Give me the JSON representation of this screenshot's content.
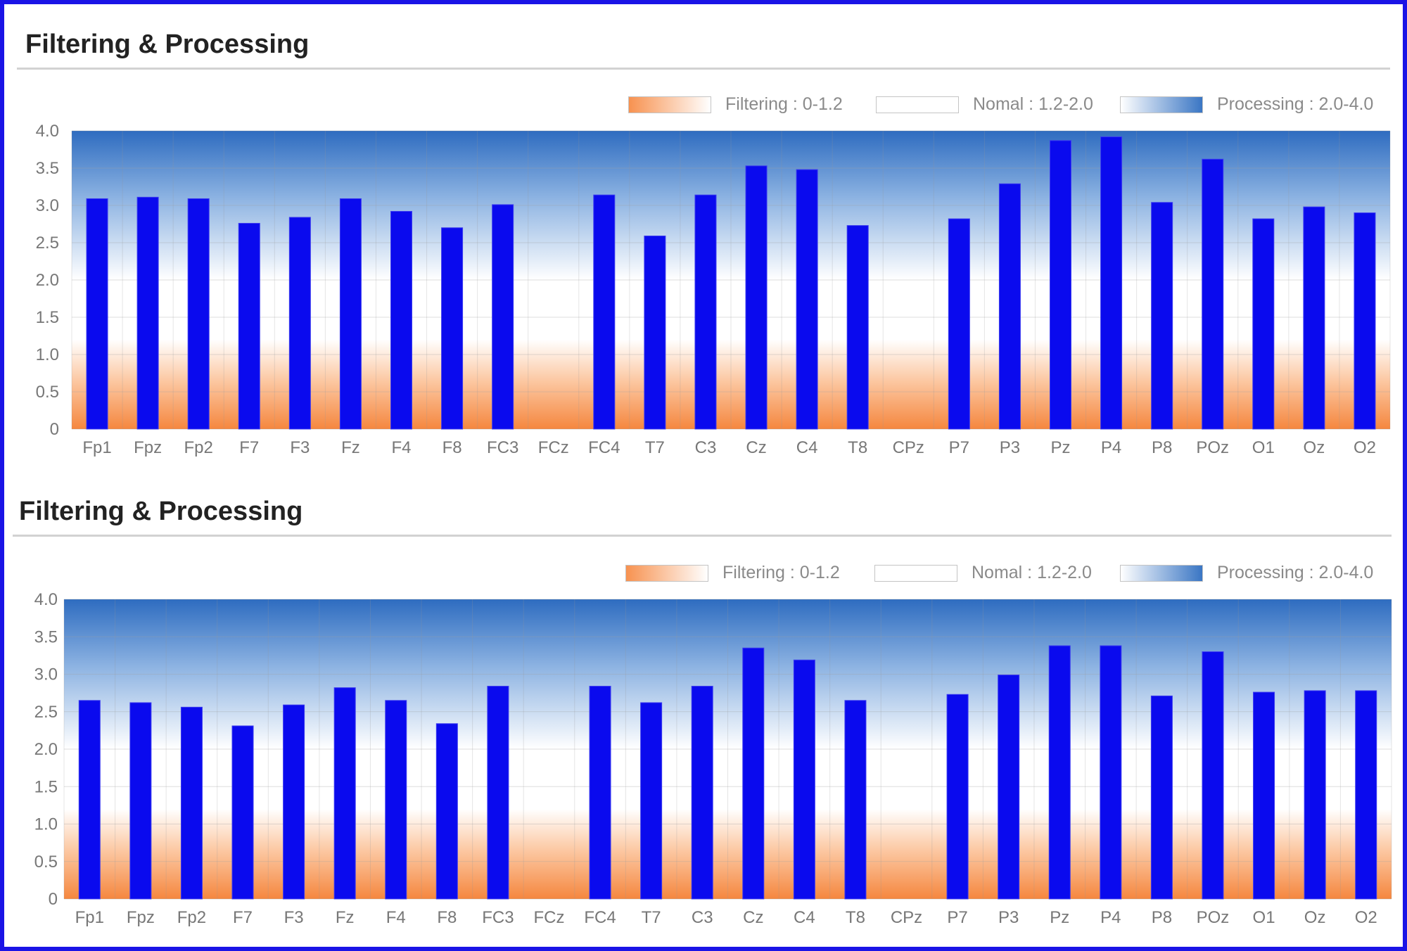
{
  "legend": {
    "filtering": {
      "label": "Filtering : 0-1.2",
      "color": "#f79250"
    },
    "normal": {
      "label": "Nomal : 1.2-2.0",
      "color": "#ffffff"
    },
    "processing": {
      "label": "Processing : 2.0-4.0",
      "color": "#3a76c4"
    }
  },
  "bar_color": "#0a0aee",
  "chart_data": [
    {
      "type": "bar",
      "title": "Filtering & Processing",
      "categories": [
        "Fp1",
        "Fpz",
        "Fp2",
        "F7",
        "F3",
        "Fz",
        "F4",
        "F8",
        "FC3",
        "FCz",
        "FC4",
        "T7",
        "C3",
        "Cz",
        "C4",
        "T8",
        "CPz",
        "P7",
        "P3",
        "Pz",
        "P4",
        "P8",
        "POz",
        "O1",
        "Oz",
        "O2"
      ],
      "values": [
        3.09,
        3.11,
        3.09,
        2.76,
        2.84,
        3.09,
        2.92,
        2.7,
        3.01,
        0,
        3.14,
        2.59,
        3.14,
        3.53,
        3.48,
        2.73,
        0,
        2.82,
        3.29,
        3.87,
        3.92,
        3.04,
        3.62,
        2.82,
        2.98,
        2.9
      ],
      "ylim": [
        0,
        4.0
      ],
      "yticks": [
        "0",
        "0.5",
        "1.0",
        "1.5",
        "2.0",
        "2.5",
        "3.0",
        "3.5",
        "4.0"
      ],
      "bands": [
        {
          "name": "Filtering",
          "from": 0,
          "to": 1.2
        },
        {
          "name": "Nomal",
          "from": 1.2,
          "to": 2.0
        },
        {
          "name": "Processing",
          "from": 2.0,
          "to": 4.0
        }
      ],
      "grid": true,
      "legend_position": "top-right"
    },
    {
      "type": "bar",
      "title": "Filtering & Processing",
      "categories": [
        "Fp1",
        "Fpz",
        "Fp2",
        "F7",
        "F3",
        "Fz",
        "F4",
        "F8",
        "FC3",
        "FCz",
        "FC4",
        "T7",
        "C3",
        "Cz",
        "C4",
        "T8",
        "CPz",
        "P7",
        "P3",
        "Pz",
        "P4",
        "P8",
        "POz",
        "O1",
        "Oz",
        "O2"
      ],
      "values": [
        2.65,
        2.62,
        2.56,
        2.31,
        2.59,
        2.82,
        2.65,
        2.34,
        2.84,
        0,
        2.84,
        2.62,
        2.84,
        3.35,
        3.19,
        2.65,
        0,
        2.73,
        2.99,
        3.38,
        3.38,
        2.71,
        3.3,
        2.76,
        2.78,
        2.78
      ],
      "ylim": [
        0,
        4.0
      ],
      "yticks": [
        "0",
        "0.5",
        "1.0",
        "1.5",
        "2.0",
        "2.5",
        "3.0",
        "3.5",
        "4.0"
      ],
      "bands": [
        {
          "name": "Filtering",
          "from": 0,
          "to": 1.2
        },
        {
          "name": "Nomal",
          "from": 1.2,
          "to": 2.0
        },
        {
          "name": "Processing",
          "from": 2.0,
          "to": 4.0
        }
      ],
      "grid": true,
      "legend_position": "top-right"
    }
  ]
}
